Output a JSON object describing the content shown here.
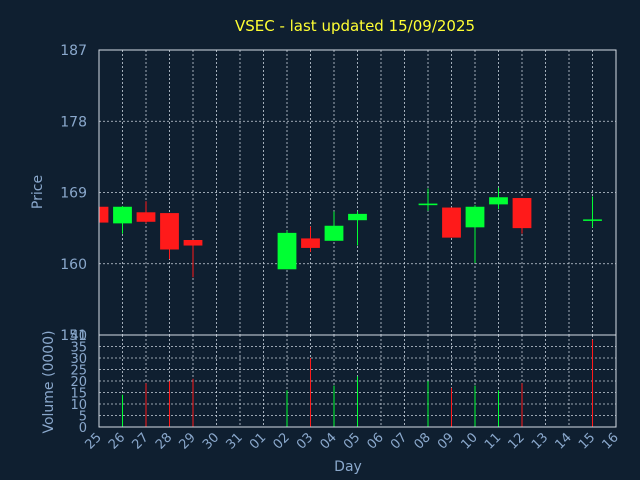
{
  "chart_data": {
    "type": "candlestick",
    "title": "VSEC - last updated 15/09/2025",
    "xlabel": "Day",
    "categories": [
      "25",
      "26",
      "27",
      "28",
      "29",
      "30",
      "31",
      "01",
      "02",
      "03",
      "04",
      "05",
      "06",
      "07",
      "08",
      "09",
      "10",
      "11",
      "12",
      "13",
      "14",
      "15",
      "16"
    ],
    "price": {
      "ylabel": "Price",
      "ylim": [
        151,
        187
      ],
      "yticks": [
        151,
        160,
        169,
        178,
        187
      ],
      "candles": [
        {
          "day": "25",
          "open": 167.2,
          "high": 167.3,
          "low": 165.2,
          "close": 165.2
        },
        {
          "day": "26",
          "open": 165.1,
          "high": 167.3,
          "low": 163.8,
          "close": 167.2
        },
        {
          "day": "27",
          "open": 166.5,
          "high": 167.9,
          "low": 165.1,
          "close": 165.3
        },
        {
          "day": "28",
          "open": 166.4,
          "high": 166.4,
          "low": 160.6,
          "close": 161.8
        },
        {
          "day": "29",
          "open": 163.0,
          "high": 163.0,
          "low": 158.3,
          "close": 162.3
        },
        {
          "day": "02",
          "open": 159.3,
          "high": 164.2,
          "low": 159.3,
          "close": 163.9
        },
        {
          "day": "03",
          "open": 163.2,
          "high": 164.7,
          "low": 161.5,
          "close": 162.0
        },
        {
          "day": "04",
          "open": 162.9,
          "high": 166.6,
          "low": 162.9,
          "close": 164.8
        },
        {
          "day": "05",
          "open": 165.5,
          "high": 166.6,
          "low": 162.3,
          "close": 166.3
        },
        {
          "day": "08",
          "open": 167.4,
          "high": 169.5,
          "low": 166.7,
          "close": 167.6
        },
        {
          "day": "09",
          "open": 167.1,
          "high": 167.1,
          "low": 163.3,
          "close": 163.3
        },
        {
          "day": "10",
          "open": 164.6,
          "high": 167.4,
          "low": 160.1,
          "close": 167.2
        },
        {
          "day": "11",
          "open": 167.5,
          "high": 169.6,
          "low": 166.9,
          "close": 168.4
        },
        {
          "day": "12",
          "open": 168.3,
          "high": 168.3,
          "low": 163.8,
          "close": 164.5
        },
        {
          "day": "15",
          "open": 165.6,
          "high": 168.5,
          "low": 164.6,
          "close": 165.6
        }
      ]
    },
    "volume": {
      "ylabel": "Volume (0000)",
      "ylim": [
        0,
        40
      ],
      "yticks": [
        0,
        5,
        10,
        15,
        20,
        25,
        30,
        35,
        40
      ],
      "bars": [
        {
          "day": "26",
          "value": 14,
          "color": "#00ff33"
        },
        {
          "day": "27",
          "value": 19,
          "color": "#ff1a1a"
        },
        {
          "day": "28",
          "value": 20,
          "color": "#ff1a1a"
        },
        {
          "day": "29",
          "value": 21,
          "color": "#ff1a1a"
        },
        {
          "day": "02",
          "value": 16,
          "color": "#00ff33"
        },
        {
          "day": "03",
          "value": 30,
          "color": "#ff1a1a"
        },
        {
          "day": "04",
          "value": 18,
          "color": "#00ff33"
        },
        {
          "day": "05",
          "value": 22,
          "color": "#00ff33"
        },
        {
          "day": "08",
          "value": 20,
          "color": "#00ff33"
        },
        {
          "day": "09",
          "value": 17,
          "color": "#ff1a1a"
        },
        {
          "day": "10",
          "value": 18,
          "color": "#00ff33"
        },
        {
          "day": "11",
          "value": 16,
          "color": "#00ff33"
        },
        {
          "day": "12",
          "value": 19,
          "color": "#ff1a1a"
        },
        {
          "day": "15",
          "value": 38,
          "color": "#ff1a1a"
        }
      ]
    },
    "colors": {
      "up": "#00ff33",
      "down": "#ff1a1a",
      "background": "#0f1f30",
      "text": "#8aa8cc",
      "title": "#ffff33"
    },
    "grid": true
  }
}
